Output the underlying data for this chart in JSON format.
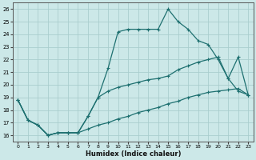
{
  "xlabel": "Humidex (Indice chaleur)",
  "bg_color": "#cce8e8",
  "grid_color": "#aacece",
  "line_color": "#1e7070",
  "xlim": [
    -0.5,
    23.5
  ],
  "ylim": [
    15.5,
    26.5
  ],
  "xticks": [
    0,
    1,
    2,
    3,
    4,
    5,
    6,
    7,
    8,
    9,
    10,
    11,
    12,
    13,
    14,
    15,
    16,
    17,
    18,
    19,
    20,
    21,
    22,
    23
  ],
  "yticks": [
    16,
    17,
    18,
    19,
    20,
    21,
    22,
    23,
    24,
    25,
    26
  ],
  "line1_x": [
    0,
    1,
    2,
    3,
    4,
    5,
    6,
    7,
    8,
    9,
    10,
    11,
    12,
    13,
    14,
    15,
    16,
    17,
    18,
    19,
    20,
    21,
    22,
    23
  ],
  "line1_y": [
    18.8,
    17.2,
    16.8,
    16.0,
    16.2,
    16.2,
    16.2,
    16.5,
    16.8,
    17.0,
    17.3,
    17.5,
    17.8,
    18.0,
    18.2,
    18.5,
    18.7,
    19.0,
    19.2,
    19.4,
    19.5,
    19.6,
    19.7,
    19.2
  ],
  "line2_x": [
    0,
    1,
    2,
    3,
    4,
    5,
    6,
    7,
    8,
    9,
    10,
    11,
    12,
    13,
    14,
    15,
    16,
    17,
    18,
    19,
    20,
    21,
    22,
    23
  ],
  "line2_y": [
    18.8,
    17.2,
    16.8,
    16.0,
    16.2,
    16.2,
    16.2,
    17.5,
    19.0,
    19.5,
    19.8,
    20.0,
    20.2,
    20.4,
    20.5,
    20.7,
    21.2,
    21.5,
    21.8,
    22.0,
    22.2,
    20.5,
    19.5,
    19.2
  ],
  "line3_x": [
    0,
    1,
    2,
    3,
    4,
    5,
    6,
    7,
    8,
    9,
    10,
    11,
    12,
    13,
    14,
    15,
    16,
    17,
    18,
    19,
    20,
    21,
    22,
    23
  ],
  "line3_y": [
    18.8,
    17.2,
    16.8,
    16.0,
    16.2,
    16.2,
    16.2,
    17.5,
    19.0,
    21.3,
    24.2,
    24.4,
    24.4,
    24.4,
    24.4,
    26.0,
    25.0,
    24.4,
    23.5,
    23.2,
    22.0,
    20.5,
    22.2,
    19.2
  ]
}
